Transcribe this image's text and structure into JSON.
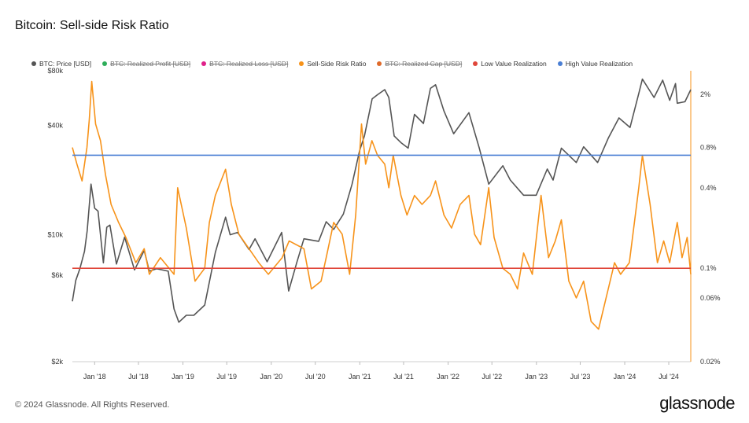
{
  "title": "Bitcoin: Sell-side Risk Ratio",
  "footer": "© 2024 Glassnode. All Rights Reserved.",
  "brand": "glassnode",
  "colors": {
    "price": "#555555",
    "ratio": "#f7931a",
    "low": "#e0473b",
    "high": "#4a7fd4",
    "realized_profit": "#2eae5a",
    "realized_loss": "#e0218a",
    "realized_cap": "#e06a2a"
  },
  "legend": [
    {
      "label": "BTC: Price [USD]",
      "color": "#555555",
      "enabled": true
    },
    {
      "label": "BTC: Realized Profit [USD]",
      "color": "#2eae5a",
      "enabled": false
    },
    {
      "label": "BTC: Realized Loss [USD]",
      "color": "#e0218a",
      "enabled": false
    },
    {
      "label": "Sell-Side Risk Ratio",
      "color": "#f7931a",
      "enabled": true
    },
    {
      "label": "BTC: Realized Cap [USD]",
      "color": "#e06a2a",
      "enabled": false
    },
    {
      "label": "Low Value Realization",
      "color": "#e0473b",
      "enabled": true
    },
    {
      "label": "High Value Realization",
      "color": "#4a7fd4",
      "enabled": true
    }
  ],
  "chart_data": {
    "type": "line",
    "title": "Bitcoin: Sell-side Risk Ratio",
    "x_range": [
      "2017-10-01",
      "2024-09-30"
    ],
    "x_ticks": [
      {
        "label": "Jan '18",
        "date": "2018-01-01"
      },
      {
        "label": "Jul '18",
        "date": "2018-07-01"
      },
      {
        "label": "Jan '19",
        "date": "2019-01-01"
      },
      {
        "label": "Jul '19",
        "date": "2019-07-01"
      },
      {
        "label": "Jan '20",
        "date": "2020-01-01"
      },
      {
        "label": "Jul '20",
        "date": "2020-07-01"
      },
      {
        "label": "Jan '21",
        "date": "2021-01-01"
      },
      {
        "label": "Jul '21",
        "date": "2021-07-01"
      },
      {
        "label": "Jan '22",
        "date": "2022-01-01"
      },
      {
        "label": "Jul '22",
        "date": "2022-07-01"
      },
      {
        "label": "Jan '23",
        "date": "2023-01-01"
      },
      {
        "label": "Jul '23",
        "date": "2023-07-01"
      },
      {
        "label": "Jan '24",
        "date": "2024-01-01"
      },
      {
        "label": "Jul '24",
        "date": "2024-07-01"
      }
    ],
    "y_left": {
      "scale": "log",
      "range": [
        2000,
        80000
      ],
      "ticks": [
        {
          "label": "$80k",
          "value": 80000
        },
        {
          "label": "$40k",
          "value": 40000
        },
        {
          "label": "$10k",
          "value": 10000
        },
        {
          "label": "$6k",
          "value": 6000
        },
        {
          "label": "$2k",
          "value": 2000
        }
      ]
    },
    "y_right": {
      "scale": "log",
      "range": [
        0.0002,
        0.03
      ],
      "ticks": [
        {
          "label": "2%",
          "value": 0.02
        },
        {
          "label": "0.8%",
          "value": 0.008
        },
        {
          "label": "0.4%",
          "value": 0.004
        },
        {
          "label": "0.1%",
          "value": 0.001
        },
        {
          "label": "0.06%",
          "value": 0.0006
        },
        {
          "label": "0.02%",
          "value": 0.0002
        }
      ]
    },
    "thresholds": [
      {
        "name": "High Value Realization",
        "value": 0.007,
        "color": "#4a7fd4"
      },
      {
        "name": "Low Value Realization",
        "value": 0.001,
        "color": "#e0473b"
      }
    ],
    "series": [
      {
        "name": "BTC: Price [USD]",
        "axis": "left",
        "color": "#555555",
        "points": [
          [
            "2017-10-01",
            4300
          ],
          [
            "2017-10-15",
            5600
          ],
          [
            "2017-11-01",
            6500
          ],
          [
            "2017-11-20",
            8100
          ],
          [
            "2017-12-01",
            10500
          ],
          [
            "2017-12-17",
            19000
          ],
          [
            "2018-01-01",
            14000
          ],
          [
            "2018-01-15",
            13500
          ],
          [
            "2018-02-06",
            7000
          ],
          [
            "2018-02-20",
            11000
          ],
          [
            "2018-03-05",
            11300
          ],
          [
            "2018-04-01",
            6900
          ],
          [
            "2018-05-05",
            9700
          ],
          [
            "2018-06-15",
            6400
          ],
          [
            "2018-07-25",
            8200
          ],
          [
            "2018-08-15",
            6300
          ],
          [
            "2018-09-15",
            6500
          ],
          [
            "2018-11-01",
            6300
          ],
          [
            "2018-11-25",
            3900
          ],
          [
            "2018-12-15",
            3300
          ],
          [
            "2019-01-15",
            3600
          ],
          [
            "2019-02-15",
            3600
          ],
          [
            "2019-04-01",
            4100
          ],
          [
            "2019-05-15",
            8000
          ],
          [
            "2019-06-26",
            12500
          ],
          [
            "2019-07-15",
            10000
          ],
          [
            "2019-08-15",
            10300
          ],
          [
            "2019-10-01",
            8300
          ],
          [
            "2019-10-26",
            9500
          ],
          [
            "2019-12-15",
            7100
          ],
          [
            "2020-02-13",
            10300
          ],
          [
            "2020-03-13",
            4900
          ],
          [
            "2020-04-15",
            7000
          ],
          [
            "2020-05-15",
            9500
          ],
          [
            "2020-07-15",
            9200
          ],
          [
            "2020-08-15",
            11800
          ],
          [
            "2020-09-15",
            10700
          ],
          [
            "2020-10-25",
            13000
          ],
          [
            "2020-11-30",
            19000
          ],
          [
            "2020-12-31",
            29000
          ],
          [
            "2021-01-20",
            35000
          ],
          [
            "2021-02-21",
            56000
          ],
          [
            "2021-03-15",
            59000
          ],
          [
            "2021-04-14",
            63000
          ],
          [
            "2021-05-01",
            57000
          ],
          [
            "2021-05-23",
            35000
          ],
          [
            "2021-06-22",
            32000
          ],
          [
            "2021-07-20",
            30000
          ],
          [
            "2021-08-15",
            46000
          ],
          [
            "2021-09-21",
            41000
          ],
          [
            "2021-10-20",
            64000
          ],
          [
            "2021-11-10",
            67000
          ],
          [
            "2021-12-15",
            48000
          ],
          [
            "2022-01-24",
            36000
          ],
          [
            "2022-03-28",
            47000
          ],
          [
            "2022-05-10",
            30000
          ],
          [
            "2022-06-18",
            19000
          ],
          [
            "2022-08-15",
            24000
          ],
          [
            "2022-09-15",
            20000
          ],
          [
            "2022-11-09",
            16500
          ],
          [
            "2022-12-31",
            16500
          ],
          [
            "2023-02-15",
            23000
          ],
          [
            "2023-03-11",
            20000
          ],
          [
            "2023-04-14",
            30000
          ],
          [
            "2023-06-15",
            25000
          ],
          [
            "2023-07-15",
            30500
          ],
          [
            "2023-09-11",
            25000
          ],
          [
            "2023-10-25",
            34000
          ],
          [
            "2023-12-08",
            44000
          ],
          [
            "2024-01-23",
            39000
          ],
          [
            "2024-02-28",
            60000
          ],
          [
            "2024-03-14",
            72000
          ],
          [
            "2024-05-01",
            57000
          ],
          [
            "2024-06-06",
            71000
          ],
          [
            "2024-07-05",
            55000
          ],
          [
            "2024-07-29",
            68000
          ],
          [
            "2024-08-05",
            53000
          ],
          [
            "2024-09-06",
            54000
          ],
          [
            "2024-09-30",
            63000
          ]
        ]
      },
      {
        "name": "Sell-Side Risk Ratio",
        "axis": "right",
        "color": "#f7931a",
        "points": [
          [
            "2017-10-01",
            0.008
          ],
          [
            "2017-10-20",
            0.006
          ],
          [
            "2017-11-10",
            0.0045
          ],
          [
            "2017-11-30",
            0.008
          ],
          [
            "2017-12-10",
            0.013
          ],
          [
            "2017-12-20",
            0.025
          ],
          [
            "2018-01-05",
            0.012
          ],
          [
            "2018-01-25",
            0.009
          ],
          [
            "2018-02-15",
            0.005
          ],
          [
            "2018-03-10",
            0.003
          ],
          [
            "2018-04-10",
            0.0022
          ],
          [
            "2018-05-10",
            0.0017
          ],
          [
            "2018-06-20",
            0.0011
          ],
          [
            "2018-07-25",
            0.0014
          ],
          [
            "2018-08-15",
            0.0009
          ],
          [
            "2018-09-30",
            0.0012
          ],
          [
            "2018-11-25",
            0.0009
          ],
          [
            "2018-12-10",
            0.004
          ],
          [
            "2019-01-15",
            0.002
          ],
          [
            "2019-02-20",
            0.0008
          ],
          [
            "2019-04-01",
            0.001
          ],
          [
            "2019-04-20",
            0.0022
          ],
          [
            "2019-05-15",
            0.0035
          ],
          [
            "2019-06-26",
            0.0055
          ],
          [
            "2019-07-20",
            0.003
          ],
          [
            "2019-08-20",
            0.0018
          ],
          [
            "2019-10-01",
            0.0014
          ],
          [
            "2019-11-10",
            0.0011
          ],
          [
            "2019-12-20",
            0.0009
          ],
          [
            "2020-02-15",
            0.0012
          ],
          [
            "2020-03-15",
            0.0016
          ],
          [
            "2020-05-15",
            0.0014
          ],
          [
            "2020-06-15",
            0.0007
          ],
          [
            "2020-07-25",
            0.0008
          ],
          [
            "2020-08-15",
            0.0012
          ],
          [
            "2020-09-15",
            0.0022
          ],
          [
            "2020-10-20",
            0.0018
          ],
          [
            "2020-11-20",
            0.0009
          ],
          [
            "2020-12-15",
            0.0025
          ],
          [
            "2021-01-08",
            0.012
          ],
          [
            "2021-01-25",
            0.006
          ],
          [
            "2021-02-20",
            0.009
          ],
          [
            "2021-03-15",
            0.007
          ],
          [
            "2021-04-14",
            0.006
          ],
          [
            "2021-05-01",
            0.004
          ],
          [
            "2021-05-19",
            0.007
          ],
          [
            "2021-06-20",
            0.0035
          ],
          [
            "2021-07-15",
            0.0025
          ],
          [
            "2021-08-15",
            0.0035
          ],
          [
            "2021-09-15",
            0.003
          ],
          [
            "2021-10-20",
            0.0035
          ],
          [
            "2021-11-10",
            0.0045
          ],
          [
            "2021-12-15",
            0.0025
          ],
          [
            "2022-01-15",
            0.002
          ],
          [
            "2022-02-20",
            0.003
          ],
          [
            "2022-03-28",
            0.0035
          ],
          [
            "2022-04-20",
            0.0018
          ],
          [
            "2022-05-15",
            0.0015
          ],
          [
            "2022-06-18",
            0.004
          ],
          [
            "2022-07-10",
            0.0017
          ],
          [
            "2022-08-15",
            0.001
          ],
          [
            "2022-09-15",
            0.0009
          ],
          [
            "2022-10-15",
            0.0007
          ],
          [
            "2022-11-09",
            0.0013
          ],
          [
            "2022-12-15",
            0.0009
          ],
          [
            "2023-01-20",
            0.0035
          ],
          [
            "2023-02-20",
            0.0012
          ],
          [
            "2023-03-20",
            0.0016
          ],
          [
            "2023-04-14",
            0.0023
          ],
          [
            "2023-05-15",
            0.0008
          ],
          [
            "2023-06-15",
            0.0006
          ],
          [
            "2023-07-15",
            0.0008
          ],
          [
            "2023-08-15",
            0.0004
          ],
          [
            "2023-09-15",
            0.00035
          ],
          [
            "2023-10-25",
            0.0007
          ],
          [
            "2023-11-20",
            0.0011
          ],
          [
            "2023-12-15",
            0.0009
          ],
          [
            "2024-01-20",
            0.0011
          ],
          [
            "2024-02-28",
            0.004
          ],
          [
            "2024-03-14",
            0.007
          ],
          [
            "2024-04-15",
            0.003
          ],
          [
            "2024-05-15",
            0.0011
          ],
          [
            "2024-06-10",
            0.0016
          ],
          [
            "2024-07-05",
            0.0011
          ],
          [
            "2024-08-05",
            0.0022
          ],
          [
            "2024-08-25",
            0.0012
          ],
          [
            "2024-09-15",
            0.0017
          ],
          [
            "2024-09-30",
            0.0009
          ]
        ]
      }
    ]
  }
}
